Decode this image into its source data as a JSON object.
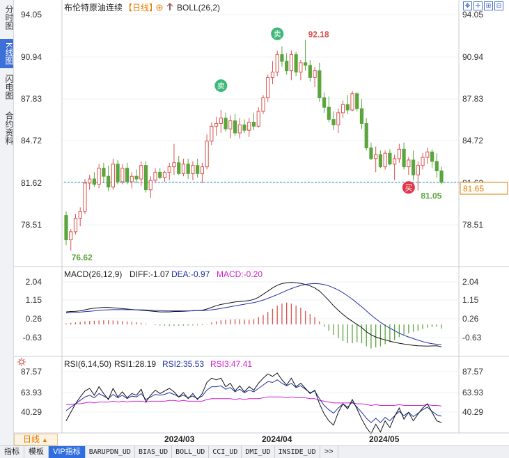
{
  "left_tabs": [
    {
      "label": "分时图",
      "active": false
    },
    {
      "label": "K线图",
      "active": true
    },
    {
      "label": "闪电图",
      "active": false
    },
    {
      "label": "合约资料",
      "active": false
    }
  ],
  "header": {
    "title": "布伦特原油连续",
    "period_tag": "【日线】",
    "indicator": "BOLL(26,2)"
  },
  "price_axis": {
    "labels": [
      "94.05",
      "90.94",
      "87.83",
      "84.72",
      "81.62",
      "78.51"
    ],
    "current_price": "81.65",
    "current_price_color": "#e07b00"
  },
  "annotations": {
    "high": "92.18",
    "low_start": "76.62",
    "low_recent": "81.05",
    "sell_label": "卖",
    "buy_label": "买"
  },
  "macd": {
    "title": "MACD(26,12,9)",
    "diff": "DIFF:-1.07",
    "dea": "DEA:-0.97",
    "macd": "MACD:-0.20",
    "labels": [
      "2.04",
      "1.15",
      "0.26",
      "-0.63"
    ]
  },
  "rsi": {
    "title": "RSI(6,14,50)",
    "rsi1": "RSI1:28.19",
    "rsi2": "RSI2:35.53",
    "rsi3": "RSI3:47.41",
    "labels": [
      "87.57",
      "63.93",
      "40.29"
    ]
  },
  "dates": [
    "2024/03",
    "2024/04",
    "2024/05"
  ],
  "period_bar": {
    "label": "日线",
    "arrow": "▲"
  },
  "bottom_tabs": [
    "指标",
    "模板",
    "VIP指标",
    "BARUPDN_UD",
    "BIAS_UD",
    "BOLL_UD",
    "CCI_UD",
    "DMI_UD",
    "INSIDE_UD",
    ">>"
  ],
  "colors": {
    "up": "#d9534f",
    "down": "#5aa53c",
    "macd_dea": "#1f2fa8",
    "rsi2": "#1f2fa8",
    "rsi3": "#d020d0",
    "accent": "#e07b00"
  },
  "chart_data": {
    "type": "candlestick",
    "ylim": [
      76.0,
      94.5
    ],
    "ohlc": [
      [
        79.2,
        79.5,
        77.0,
        77.4
      ],
      [
        77.4,
        78.2,
        76.6,
        78.0
      ],
      [
        78.0,
        79.3,
        77.8,
        79.0
      ],
      [
        79.0,
        79.8,
        78.4,
        79.5
      ],
      [
        79.5,
        81.9,
        79.3,
        81.6
      ],
      [
        81.6,
        82.2,
        81.1,
        81.9
      ],
      [
        81.9,
        82.4,
        81.3,
        81.5
      ],
      [
        81.5,
        83.0,
        81.2,
        82.7
      ],
      [
        82.7,
        83.1,
        81.6,
        82.1
      ],
      [
        82.1,
        82.9,
        81.0,
        81.3
      ],
      [
        81.3,
        83.4,
        81.1,
        83.0
      ],
      [
        83.0,
        83.3,
        81.5,
        81.7
      ],
      [
        81.7,
        83.0,
        81.5,
        82.7
      ],
      [
        82.7,
        83.1,
        81.5,
        81.7
      ],
      [
        81.7,
        82.4,
        81.2,
        82.1
      ],
      [
        82.1,
        82.6,
        81.6,
        81.9
      ],
      [
        81.9,
        83.2,
        81.4,
        82.9
      ],
      [
        82.9,
        83.2,
        80.9,
        81.1
      ],
      [
        81.1,
        82.1,
        80.5,
        81.8
      ],
      [
        81.8,
        82.7,
        81.6,
        82.4
      ],
      [
        82.4,
        82.7,
        81.9,
        82.0
      ],
      [
        82.0,
        82.5,
        81.7,
        82.4
      ],
      [
        82.4,
        83.1,
        81.8,
        82.8
      ],
      [
        82.8,
        84.5,
        82.2,
        83.1
      ],
      [
        83.1,
        83.6,
        82.2,
        82.3
      ],
      [
        82.3,
        83.4,
        82.1,
        83.0
      ],
      [
        83.0,
        83.4,
        81.9,
        82.3
      ],
      [
        82.3,
        83.2,
        81.8,
        82.9
      ],
      [
        82.9,
        83.4,
        82.0,
        82.3
      ],
      [
        82.3,
        83.1,
        81.6,
        82.8
      ],
      [
        82.8,
        85.2,
        82.6,
        84.7
      ],
      [
        84.7,
        86.1,
        84.4,
        85.8
      ],
      [
        85.8,
        86.5,
        85.1,
        86.0
      ],
      [
        86.0,
        87.0,
        85.3,
        86.4
      ],
      [
        86.4,
        86.8,
        85.4,
        85.6
      ],
      [
        85.6,
        86.6,
        84.9,
        86.2
      ],
      [
        86.2,
        86.7,
        85.1,
        85.3
      ],
      [
        85.3,
        86.4,
        84.9,
        85.9
      ],
      [
        85.9,
        86.3,
        85.3,
        85.5
      ],
      [
        85.5,
        86.4,
        85.0,
        86.1
      ],
      [
        86.1,
        86.8,
        85.5,
        85.8
      ],
      [
        85.8,
        87.2,
        85.7,
        86.9
      ],
      [
        86.9,
        88.1,
        86.7,
        87.9
      ],
      [
        87.9,
        89.6,
        87.6,
        89.4
      ],
      [
        89.4,
        90.6,
        88.9,
        89.8
      ],
      [
        89.8,
        91.4,
        89.5,
        91.1
      ],
      [
        91.1,
        91.7,
        90.2,
        90.6
      ],
      [
        90.6,
        91.2,
        89.6,
        89.9
      ],
      [
        89.9,
        91.4,
        89.2,
        91.1
      ],
      [
        91.1,
        91.3,
        89.5,
        89.8
      ],
      [
        89.8,
        90.7,
        89.2,
        90.5
      ],
      [
        90.5,
        92.18,
        89.9,
        90.3
      ],
      [
        90.3,
        90.7,
        89.1,
        89.4
      ],
      [
        89.4,
        90.2,
        88.7,
        89.9
      ],
      [
        89.9,
        90.5,
        87.6,
        87.9
      ],
      [
        87.9,
        88.3,
        86.8,
        87.2
      ],
      [
        87.2,
        88.0,
        86.1,
        86.3
      ],
      [
        86.3,
        86.9,
        85.5,
        85.9
      ],
      [
        85.9,
        87.1,
        85.3,
        86.8
      ],
      [
        86.8,
        87.7,
        86.4,
        87.4
      ],
      [
        87.4,
        88.1,
        86.7,
        87.0
      ],
      [
        87.0,
        88.4,
        86.9,
        88.2
      ],
      [
        88.2,
        88.3,
        86.9,
        87.1
      ],
      [
        87.1,
        87.8,
        85.6,
        86.0
      ],
      [
        86.0,
        86.4,
        84.0,
        84.2
      ],
      [
        84.2,
        84.6,
        83.3,
        83.4
      ],
      [
        83.4,
        84.3,
        82.4,
        83.7
      ],
      [
        83.7,
        84.0,
        82.7,
        82.8
      ],
      [
        82.8,
        84.0,
        82.6,
        83.8
      ],
      [
        83.8,
        84.1,
        82.9,
        83.0
      ],
      [
        83.0,
        83.7,
        81.8,
        83.4
      ],
      [
        83.4,
        84.5,
        83.1,
        84.1
      ],
      [
        84.1,
        84.6,
        82.6,
        82.8
      ],
      [
        82.8,
        83.5,
        82.2,
        83.3
      ],
      [
        83.3,
        84.0,
        81.8,
        82.2
      ],
      [
        82.2,
        83.2,
        81.05,
        82.9
      ],
      [
        82.9,
        83.8,
        82.6,
        83.5
      ],
      [
        83.5,
        84.2,
        83.0,
        83.9
      ],
      [
        83.9,
        84.1,
        82.7,
        83.2
      ],
      [
        83.2,
        83.8,
        82.0,
        82.5
      ],
      [
        82.5,
        82.8,
        81.5,
        81.65
      ]
    ],
    "macd_bars": [
      0.05,
      0.08,
      0.1,
      0.12,
      0.15,
      0.17,
      0.18,
      0.19,
      0.2,
      0.2,
      0.19,
      0.18,
      0.16,
      0.14,
      0.12,
      0.1,
      0.07,
      0.04,
      0.0,
      -0.03,
      -0.05,
      -0.06,
      -0.07,
      -0.07,
      -0.06,
      -0.06,
      -0.05,
      -0.05,
      -0.04,
      -0.03,
      0.02,
      0.1,
      0.15,
      0.2,
      0.22,
      0.24,
      0.25,
      0.24,
      0.23,
      0.22,
      0.25,
      0.35,
      0.45,
      0.6,
      0.75,
      0.9,
      1.0,
      1.05,
      1.0,
      0.9,
      0.8,
      0.65,
      0.5,
      0.35,
      0.15,
      -0.1,
      -0.3,
      -0.5,
      -0.65,
      -0.8,
      -0.9,
      -0.9,
      -0.85,
      -0.9,
      -1.05,
      -1.15,
      -1.1,
      -1.05,
      -0.95,
      -0.85,
      -0.75,
      -0.6,
      -0.5,
      -0.42,
      -0.35,
      -0.3,
      -0.22,
      -0.15,
      -0.12,
      -0.1,
      -0.2
    ],
    "macd_diff": [
      0.6,
      0.62,
      0.63,
      0.65,
      0.7,
      0.75,
      0.78,
      0.8,
      0.82,
      0.82,
      0.8,
      0.78,
      0.76,
      0.74,
      0.72,
      0.7,
      0.68,
      0.66,
      0.64,
      0.62,
      0.6,
      0.6,
      0.6,
      0.62,
      0.62,
      0.63,
      0.64,
      0.66,
      0.67,
      0.68,
      0.74,
      0.82,
      0.9,
      0.96,
      1.0,
      1.04,
      1.08,
      1.1,
      1.12,
      1.15,
      1.2,
      1.3,
      1.45,
      1.6,
      1.75,
      1.88,
      1.96,
      2.0,
      2.02,
      2.0,
      1.97,
      1.92,
      1.85,
      1.75,
      1.6,
      1.38,
      1.15,
      0.9,
      0.68,
      0.48,
      0.3,
      0.15,
      0.0,
      -0.15,
      -0.35,
      -0.5,
      -0.6,
      -0.68,
      -0.74,
      -0.8,
      -0.86,
      -0.9,
      -0.94,
      -0.97,
      -1.0,
      -1.02,
      -1.03,
      -1.04,
      -1.03,
      -1.02,
      -1.07
    ],
    "macd_dea": [
      0.55,
      0.57,
      0.58,
      0.59,
      0.61,
      0.63,
      0.65,
      0.67,
      0.69,
      0.7,
      0.71,
      0.71,
      0.71,
      0.71,
      0.71,
      0.7,
      0.7,
      0.69,
      0.68,
      0.67,
      0.66,
      0.65,
      0.65,
      0.65,
      0.65,
      0.65,
      0.65,
      0.65,
      0.66,
      0.66,
      0.68,
      0.7,
      0.73,
      0.77,
      0.81,
      0.85,
      0.89,
      0.93,
      0.97,
      1.01,
      1.05,
      1.1,
      1.17,
      1.25,
      1.34,
      1.43,
      1.53,
      1.63,
      1.72,
      1.8,
      1.87,
      1.92,
      1.95,
      1.96,
      1.95,
      1.91,
      1.85,
      1.76,
      1.65,
      1.52,
      1.37,
      1.21,
      1.03,
      0.85,
      0.65,
      0.45,
      0.27,
      0.1,
      -0.05,
      -0.18,
      -0.3,
      -0.42,
      -0.52,
      -0.6,
      -0.68,
      -0.75,
      -0.82,
      -0.88,
      -0.92,
      -0.95,
      -0.97
    ],
    "rsi1": [
      30,
      40,
      50,
      58,
      65,
      68,
      60,
      70,
      62,
      55,
      68,
      58,
      64,
      57,
      62,
      60,
      67,
      52,
      60,
      66,
      62,
      65,
      68,
      64,
      58,
      63,
      56,
      62,
      55,
      62,
      75,
      80,
      78,
      80,
      70,
      74,
      65,
      71,
      64,
      70,
      66,
      74,
      80,
      85,
      82,
      86,
      78,
      72,
      80,
      70,
      74,
      68,
      62,
      66,
      50,
      38,
      30,
      25,
      40,
      50,
      44,
      55,
      44,
      32,
      22,
      15,
      26,
      17,
      30,
      22,
      35,
      45,
      32,
      40,
      30,
      38,
      45,
      50,
      40,
      30,
      28
    ],
    "rsi2": [
      42,
      46,
      50,
      54,
      58,
      60,
      57,
      62,
      59,
      56,
      61,
      57,
      60,
      56,
      59,
      58,
      62,
      55,
      58,
      61,
      60,
      61,
      63,
      61,
      58,
      60,
      57,
      59,
      56,
      59,
      66,
      70,
      70,
      71,
      67,
      69,
      64,
      67,
      63,
      66,
      64,
      68,
      72,
      76,
      75,
      78,
      74,
      71,
      74,
      69,
      71,
      67,
      63,
      65,
      56,
      48,
      43,
      39,
      45,
      50,
      46,
      52,
      46,
      40,
      33,
      28,
      33,
      28,
      34,
      30,
      36,
      41,
      36,
      40,
      35,
      39,
      43,
      46,
      41,
      37,
      35.5
    ],
    "rsi3": [
      49,
      49,
      50,
      50,
      51,
      52,
      51,
      52,
      52,
      52,
      53,
      52,
      53,
      52,
      53,
      53,
      53,
      52,
      53,
      53,
      53,
      53,
      54,
      54,
      53,
      54,
      53,
      53,
      53,
      53,
      55,
      56,
      56,
      56,
      56,
      56,
      55,
      56,
      55,
      56,
      56,
      56,
      57,
      58,
      58,
      58,
      58,
      57,
      58,
      57,
      57,
      57,
      56,
      56,
      54,
      53,
      52,
      51,
      51,
      51,
      51,
      51,
      50,
      50,
      49,
      48,
      49,
      48,
      48,
      48,
      48,
      49,
      48,
      48,
      48,
      48,
      48,
      49,
      48,
      48,
      47.4
    ]
  }
}
